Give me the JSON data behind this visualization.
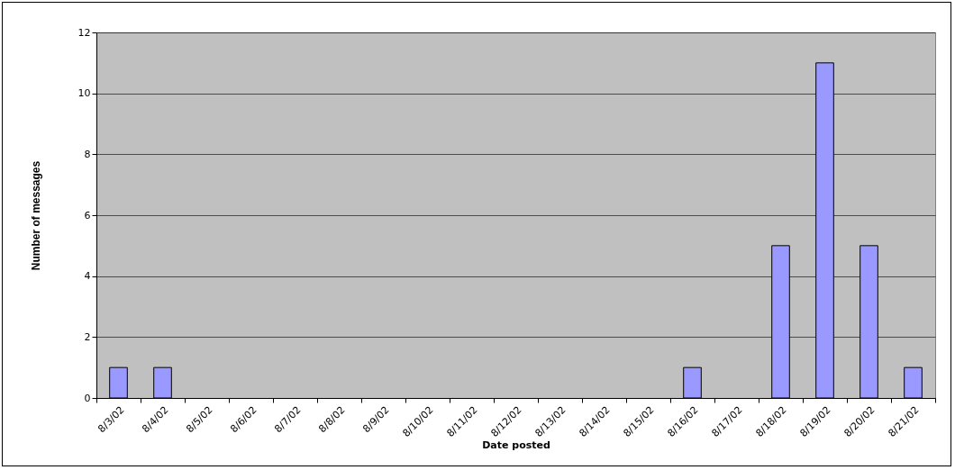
{
  "chart_data": {
    "type": "bar",
    "xlabel": "Date posted",
    "ylabel": "Number of messages",
    "categories": [
      "8/3/02",
      "8/4/02",
      "8/5/02",
      "8/6/02",
      "8/7/02",
      "8/8/02",
      "8/9/02",
      "8/10/02",
      "8/11/02",
      "8/12/02",
      "8/13/02",
      "8/14/02",
      "8/15/02",
      "8/16/02",
      "8/17/02",
      "8/18/02",
      "8/19/02",
      "8/20/02",
      "8/21/02"
    ],
    "values": [
      1,
      1,
      0,
      0,
      0,
      0,
      0,
      0,
      0,
      0,
      0,
      0,
      0,
      1,
      0,
      5,
      11,
      5,
      1
    ],
    "color": "#9999ff",
    "ylim": [
      0,
      12
    ],
    "yticks": [
      0,
      2,
      4,
      6,
      8,
      10,
      12
    ],
    "grid": "y"
  }
}
